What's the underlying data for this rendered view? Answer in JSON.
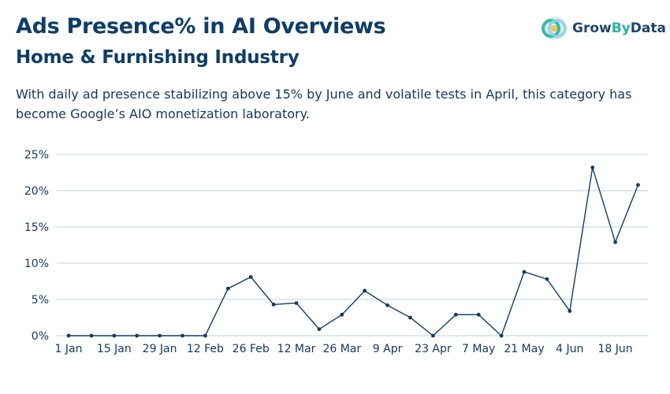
{
  "header": {
    "title": "Ads Presence% in AI Overviews",
    "subtitle": "Home & Furnishing Industry",
    "description": "With daily ad presence stabilizing above 15% by June and volatile tests in April, this category has become Google’s AIO monetization laboratory."
  },
  "logo": {
    "text_grow": "Grow",
    "text_by": "By",
    "text_data": "Data",
    "icon": "growbydata-logo-icon",
    "colors": {
      "text": "#1f4468",
      "by": "#2bb0a0"
    }
  },
  "chart_data": {
    "type": "line",
    "title": "Ads Presence% in AI Overviews",
    "subtitle": "Home & Furnishing Industry",
    "xlabel": "",
    "ylabel": "",
    "ylim": [
      0,
      25
    ],
    "yticks": [
      "0%",
      "5%",
      "10%",
      "15%",
      "20%",
      "25%"
    ],
    "ytick_values": [
      0,
      5,
      10,
      15,
      20,
      25
    ],
    "xticks": [
      "1 Jan",
      "15 Jan",
      "29 Jan",
      "12 Feb",
      "26 Feb",
      "12 Mar",
      "26 Mar",
      "9 Apr",
      "23 Apr",
      "7 May",
      "21 May",
      "4 Jun",
      "18 Jun"
    ],
    "grid": true,
    "line_color": "#0f3d66",
    "grid_color": "#bcd2e0",
    "series": [
      {
        "x": [
          "1 Jan",
          "8 Jan",
          "15 Jan",
          "22 Jan",
          "29 Jan",
          "5 Feb",
          "12 Feb",
          "19 Feb",
          "26 Feb",
          "5 Mar",
          "12 Mar",
          "19 Mar",
          "26 Mar",
          "2 Apr",
          "9 Apr",
          "16 Apr",
          "23 Apr",
          "30 Apr",
          "7 May",
          "14 May",
          "21 May",
          "28 May",
          "4 Jun",
          "11 Jun",
          "18 Jun",
          "25 Jun"
        ],
        "values": [
          0,
          0,
          0,
          0,
          0,
          0,
          0,
          6.5,
          8.1,
          4.3,
          4.5,
          0.9,
          2.9,
          6.2,
          4.2,
          2.5,
          0,
          2.9,
          2.9,
          0,
          8.8,
          7.8,
          3.4,
          23.2,
          12.9,
          20.8
        ]
      }
    ]
  }
}
